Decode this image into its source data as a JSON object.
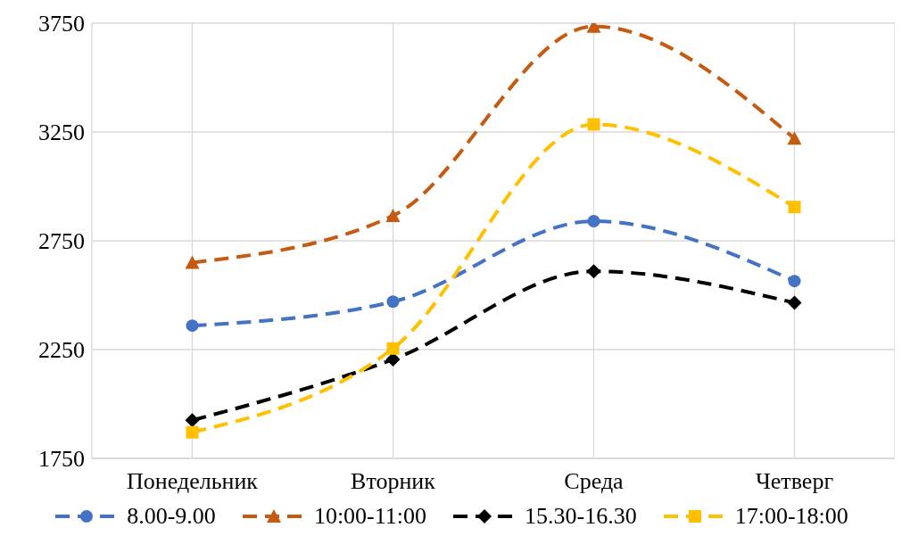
{
  "chart_data": {
    "type": "line",
    "categories": [
      "Понедельник",
      "Вторник",
      "Среда",
      "Четверг"
    ],
    "series": [
      {
        "name": "8.00-9.00",
        "color": "#4472c4",
        "marker": "circle",
        "values": [
          2360,
          2470,
          2840,
          2565
        ]
      },
      {
        "name": "10:00-11:00",
        "color": "#c55a11",
        "marker": "triangle",
        "values": [
          2650,
          2865,
          3735,
          3220
        ]
      },
      {
        "name": "15.30-16.30",
        "color": "#000000",
        "marker": "diamond",
        "values": [
          1925,
          2205,
          2610,
          2465
        ]
      },
      {
        "name": "17:00-18:00",
        "color": "#ffc000",
        "marker": "square",
        "values": [
          1870,
          2255,
          3285,
          2905
        ]
      }
    ],
    "ylim": [
      1750,
      3750
    ],
    "yticks": [
      1750,
      2250,
      2750,
      3250,
      3750
    ],
    "grid": true,
    "legend": "bottom",
    "line_style": "dashed"
  }
}
